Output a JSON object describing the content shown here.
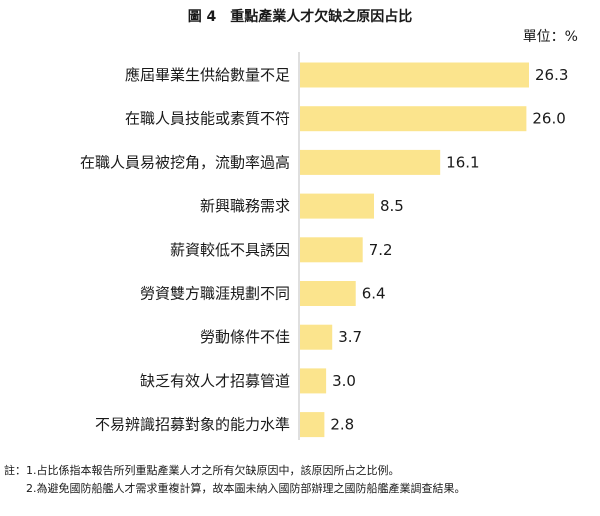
{
  "title": "圖 4　重點產業人才欠缺之原因占比",
  "unit": "單位：%",
  "colors": {
    "bar": "#fbe48d",
    "text": "#1a1a1a"
  },
  "chart_data": {
    "type": "bar",
    "orientation": "horizontal",
    "title": "圖 4　重點產業人才欠缺之原因占比",
    "unit": "單位：%",
    "categories": [
      "應屆畢業生供給數量不足",
      "在職人員技能或素質不符",
      "在職人員易被挖角，流動率過高",
      "新興職務需求",
      "薪資較低不具誘因",
      "勞資雙方職涯規劃不同",
      "勞動條件不佳",
      "缺乏有效人才招募管道",
      "不易辨識招募對象的能力水準"
    ],
    "values": [
      26.3,
      26.0,
      16.1,
      8.5,
      7.2,
      6.4,
      3.7,
      3.0,
      2.8
    ],
    "value_labels": [
      "26.3",
      "26.0",
      "16.1",
      "8.5",
      "7.2",
      "6.4",
      "3.7",
      "3.0",
      "2.8"
    ],
    "xlim": [
      0,
      26.3
    ],
    "grid": false,
    "legend": "none"
  },
  "notes": [
    "註：1.占比係指本報告所列重點產業人才之所有欠缺原因中，該原因所占之比例。",
    "2.為避免國防船艦人才需求重複計算，故本圖未納入國防部辦理之國防船艦產業調查結果。"
  ]
}
